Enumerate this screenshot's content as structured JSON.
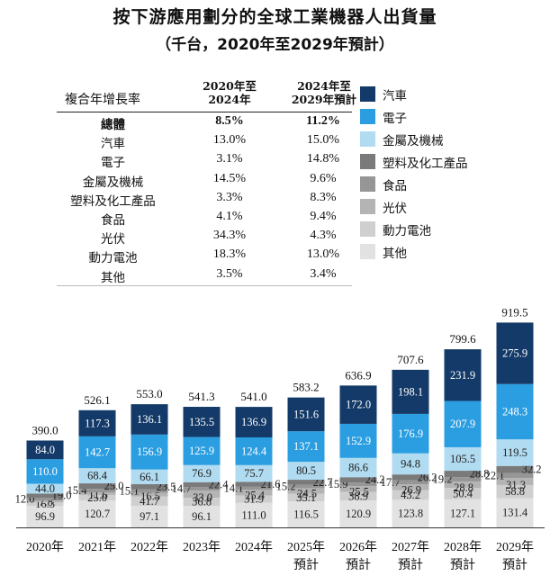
{
  "title": "按下游應用劃分的全球工業機器人出貨量",
  "subtitle": "（千台，2020年至2029年預計）",
  "cagr_table": {
    "row_header": "複合年增長率",
    "col1_line1": "2020年至",
    "col1_line2": "2024年",
    "col2_line1": "2024年至",
    "col2_line2": "2029年預計",
    "rows": [
      {
        "category": "總體",
        "v1": "8.5%",
        "v2": "11.2%",
        "bold": true
      },
      {
        "category": "汽車",
        "v1": "13.0%",
        "v2": "15.0%"
      },
      {
        "category": "電子",
        "v1": "3.1%",
        "v2": "14.8%"
      },
      {
        "category": "金屬及機械",
        "v1": "14.5%",
        "v2": "9.6%"
      },
      {
        "category": "塑料及化工產品",
        "v1": "3.3%",
        "v2": "8.3%"
      },
      {
        "category": "食品",
        "v1": "4.1%",
        "v2": "9.4%"
      },
      {
        "category": "光伏",
        "v1": "34.3%",
        "v2": "4.3%"
      },
      {
        "category": "動力電池",
        "v1": "18.3%",
        "v2": "13.0%"
      },
      {
        "category": "其他",
        "v1": "3.5%",
        "v2": "3.4%"
      }
    ]
  },
  "legend": [
    {
      "label": "汽車",
      "color": "#133a68"
    },
    {
      "label": "電子",
      "color": "#2a9ee1"
    },
    {
      "label": "金屬及機械",
      "color": "#b0dbf1"
    },
    {
      "label": "塑料及化工產品",
      "color": "#7a7a7a"
    },
    {
      "label": "食品",
      "color": "#969696"
    },
    {
      "label": "光伏",
      "color": "#b4b4b4"
    },
    {
      "label": "動力電池",
      "color": "#cfcfcf"
    },
    {
      "label": "其他",
      "color": "#e2e2e2"
    }
  ],
  "chart_data": {
    "type": "bar",
    "stacked": true,
    "title": "按下游應用劃分的全球工業機器人出貨量",
    "unit": "千台",
    "categories": [
      [
        "2020年"
      ],
      [
        "2021年"
      ],
      [
        "2022年"
      ],
      [
        "2023年"
      ],
      [
        "2024年"
      ],
      [
        "2025年",
        "預計"
      ],
      [
        "2026年",
        "預計"
      ],
      [
        "2027年",
        "預計"
      ],
      [
        "2028年",
        "預計"
      ],
      [
        "2029年",
        "預計"
      ]
    ],
    "totals": [
      "390.0",
      "526.1",
      "553.0",
      "541.3",
      "541.0",
      "583.2",
      "636.9",
      "707.6",
      "799.6",
      "919.5"
    ],
    "series": [
      {
        "name": "其他",
        "color": "#e2e2e2",
        "text_color": "#222222",
        "values": [
          96.9,
          120.7,
          97.1,
          96.1,
          111.0,
          116.5,
          120.9,
          123.8,
          127.1,
          131.4
        ],
        "labels": [
          "96.9",
          "120.7",
          "97.1",
          "96.1",
          "111.0",
          "116.5",
          "120.9",
          "123.8",
          "127.1",
          "131.4"
        ]
      },
      {
        "name": "動力電池",
        "color": "#cfcfcf",
        "text_color": "#222222",
        "values": [
          16.3,
          25.0,
          41.7,
          36.8,
          31.9,
          35.1,
          38.9,
          43.2,
          50.4,
          58.8
        ],
        "labels": [
          "16.3",
          "25.0",
          "41.7",
          "36.8",
          "31.9",
          "35.1",
          "38.9",
          "43.2",
          "50.4",
          "58.8"
        ]
      },
      {
        "name": "光伏",
        "color": "#b4b4b4",
        "text_color": "#222222",
        "values": [
          7.8,
          11.6,
          16.5,
          33.0,
          25.4,
          24.5,
          25.5,
          26.9,
          28.8,
          31.3
        ],
        "labels": [
          "7.8",
          "11.6",
          "16.5",
          "33.0",
          "25.4",
          "24.5",
          "25.5",
          "26.9",
          "28.8",
          "31.3"
        ]
      },
      {
        "name": "食品",
        "color": "#969696",
        "text_color": "#222222",
        "values": [
          12.0,
          15.4,
          15.1,
          14.7,
          14.1,
          15.2,
          15.9,
          17.7,
          19.2,
          22.1
        ],
        "labels": [
          "12.0",
          "15.4",
          "15.1",
          "14.7",
          "14.1",
          "15.2",
          "15.9",
          "17.7",
          "19.2",
          "22.1"
        ]
      },
      {
        "name": "塑料及化工產品",
        "color": "#7a7a7a",
        "text_color": "#222222",
        "values": [
          19.0,
          25.0,
          23.5,
          22.4,
          21.6,
          22.7,
          24.2,
          26.2,
          28.8,
          32.2
        ],
        "labels": [
          "19.0",
          "25.0",
          "23.5",
          "22.4",
          "21.6",
          "22.7",
          "24.2",
          "26.2",
          "28.8",
          "32.2"
        ]
      },
      {
        "name": "金屬及機械",
        "color": "#b0dbf1",
        "text_color": "#222222",
        "values": [
          44.0,
          68.4,
          66.1,
          76.9,
          75.7,
          80.5,
          86.6,
          94.8,
          105.5,
          119.5
        ],
        "labels": [
          "44.0",
          "68.4",
          "66.1",
          "76.9",
          "75.7",
          "80.5",
          "86.6",
          "94.8",
          "105.5",
          "119.5"
        ]
      },
      {
        "name": "電子",
        "color": "#2a9ee1",
        "text_color": "#ffffff",
        "values": [
          110.0,
          142.7,
          156.9,
          125.9,
          124.4,
          137.1,
          152.9,
          176.9,
          207.9,
          248.3
        ],
        "labels": [
          "110.0",
          "142.7",
          "156.9",
          "125.9",
          "124.4",
          "137.1",
          "152.9",
          "176.9",
          "207.9",
          "248.3"
        ]
      },
      {
        "name": "汽車",
        "color": "#133a68",
        "text_color": "#ffffff",
        "values": [
          84.0,
          117.3,
          136.1,
          135.5,
          136.9,
          151.6,
          172.0,
          198.1,
          231.9,
          275.9
        ],
        "labels": [
          "84.0",
          "117.3",
          "136.1",
          "135.5",
          "136.9",
          "151.6",
          "172.0",
          "198.1",
          "231.9",
          "275.9"
        ]
      }
    ],
    "ylim": [
      0,
      920
    ]
  }
}
